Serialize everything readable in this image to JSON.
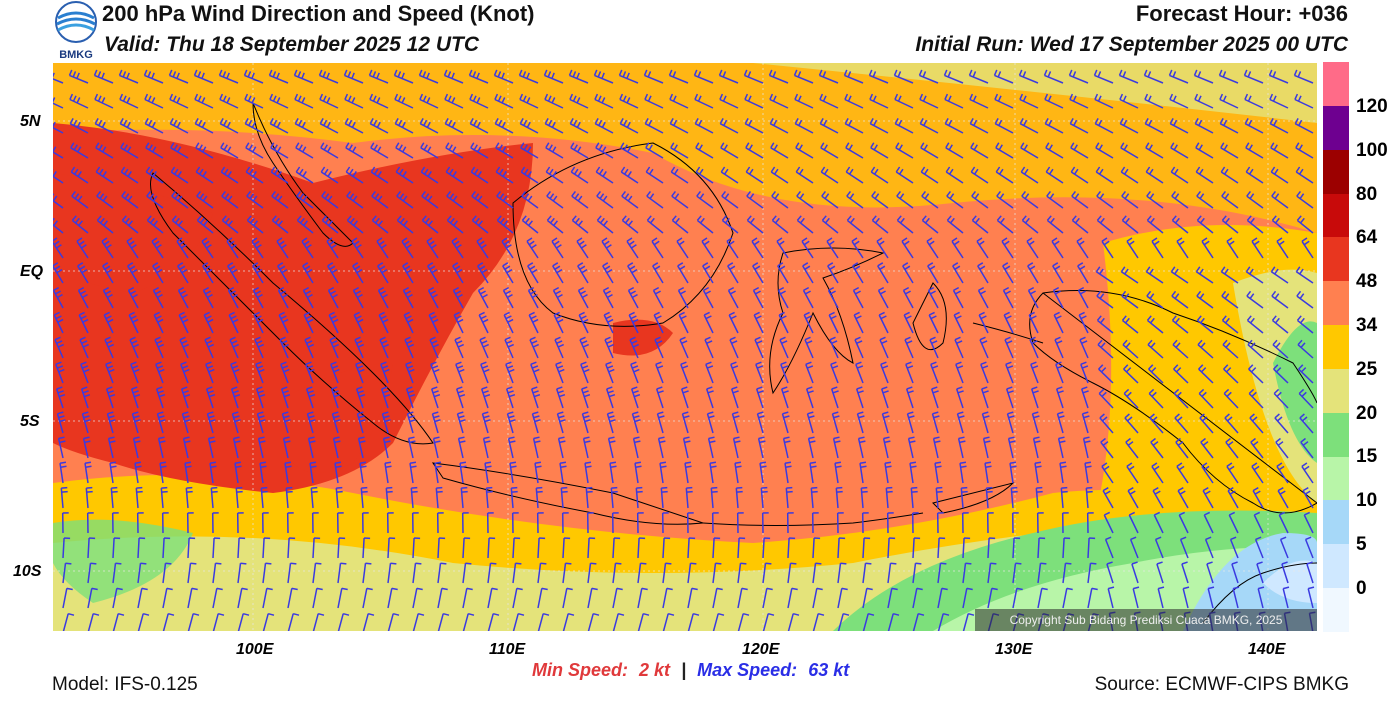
{
  "header": {
    "title": "200 hPa Wind Direction and Speed (Knot)",
    "valid": "Valid: Thu 18 September 2025 12 UTC",
    "forecast_hour": "Forecast Hour: +036",
    "initial_run": "Initial Run: Wed 17 September 2025 00 UTC"
  },
  "logo": {
    "text": "BMKG",
    "icon": "bmkg-logo"
  },
  "axes": {
    "lat_labels": [
      "5N",
      "EQ",
      "5S",
      "10S"
    ],
    "lon_labels": [
      "100E",
      "110E",
      "120E",
      "130E",
      "140E"
    ]
  },
  "colorbar": {
    "labels": [
      "120",
      "100",
      "80",
      "64",
      "48",
      "34",
      "25",
      "20",
      "15",
      "10",
      "5",
      "0"
    ],
    "colors": [
      "#f0f8ff",
      "#cfe8ff",
      "#a6d8f8",
      "#b8f5a8",
      "#7de07b",
      "#e4e37a",
      "#ffc800",
      "#ff8050",
      "#e8361f",
      "#c80a0a",
      "#9c0000",
      "#6e0090",
      "#ff6b88"
    ]
  },
  "speeds": {
    "min_label": "Min Speed:",
    "min_value": "2 kt",
    "separator": "|",
    "max_label": "Max Speed:",
    "max_value": "63 kt"
  },
  "footer": {
    "model": "Model: IFS-0.125",
    "source": "Source: ECMWF-CIPS BMKG",
    "copyright": "Copyright Sub Bidang Prediksi Cuaca BMKG, 2025"
  },
  "colors": {
    "barb": "#3a3ae0",
    "coast": "#000000",
    "grid": "#e8e8e8"
  }
}
